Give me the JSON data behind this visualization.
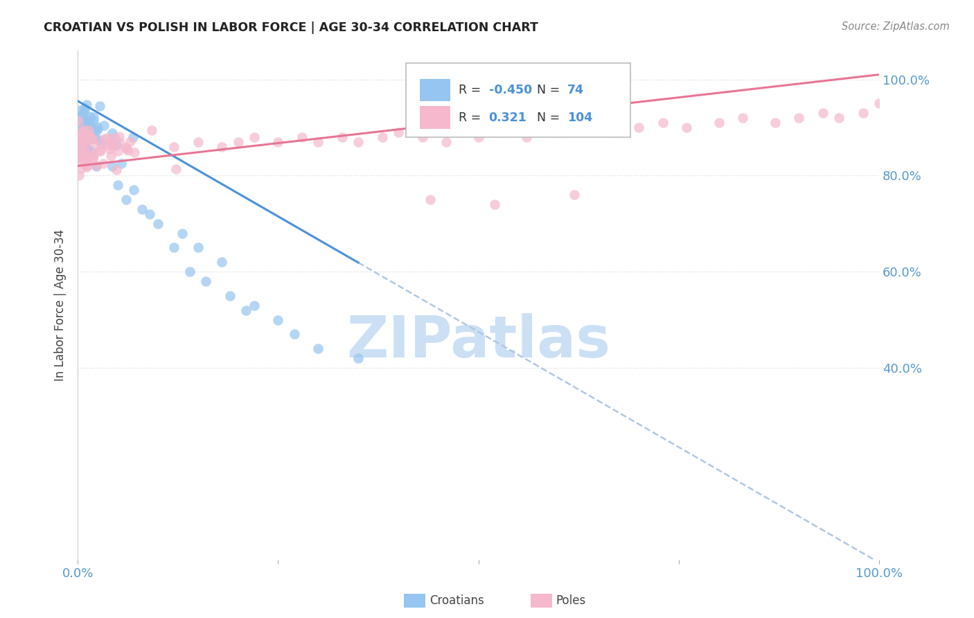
{
  "title": "CROATIAN VS POLISH IN LABOR FORCE | AGE 30-34 CORRELATION CHART",
  "source": "Source: ZipAtlas.com",
  "ylabel": "In Labor Force | Age 30-34",
  "croatian_R": -0.45,
  "croatian_N": 74,
  "polish_R": 0.321,
  "polish_N": 104,
  "croatian_color": "#95c5f0",
  "polish_color": "#f5b8cc",
  "croatian_line_color": "#4a90d9",
  "polish_line_color": "#e87595",
  "dash_color": "#b0c8e0",
  "watermark_color": "#cce0f5",
  "background_color": "#ffffff",
  "grid_color": "#d0d0d0",
  "title_color": "#222222",
  "source_color": "#888888",
  "tick_color": "#5599cc",
  "label_color": "#444444",
  "legend_box_color": "#dddddd",
  "note_color": "#333333"
}
